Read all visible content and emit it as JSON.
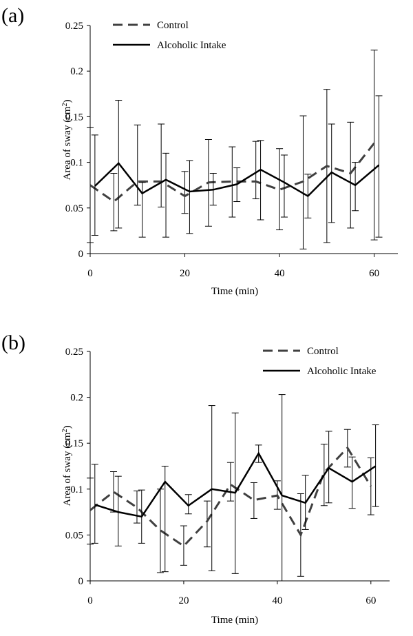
{
  "chart_data": [
    {
      "panel": "(a)",
      "type": "line",
      "xlabel": "Time (min)",
      "ylabel": "Area of sway (cm2)",
      "ylabel_base": "Area of sway (cm",
      "ylabel_sup": "2",
      "ylabel_end": ")",
      "xlim": [
        0,
        65
      ],
      "ylim": [
        0,
        0.25
      ],
      "xticks": [
        0,
        20,
        40,
        60
      ],
      "yticks": [
        0,
        0.05,
        0.1,
        0.15,
        0.2,
        0.25
      ],
      "xtick_labels": [
        "0",
        "20",
        "40",
        "60"
      ],
      "ytick_labels": [
        "0",
        "0.05",
        "0.1",
        "0.15",
        "0.2",
        "0.25"
      ],
      "grid": false,
      "legend_position": "top-left",
      "series": [
        {
          "name": "Control",
          "style": "dashed",
          "color": "#404040",
          "x": [
            0,
            5,
            10,
            15,
            20,
            25,
            30,
            35,
            40,
            45,
            50,
            55,
            60
          ],
          "y": [
            0.075,
            0.057,
            0.079,
            0.079,
            0.063,
            0.078,
            0.079,
            0.079,
            0.07,
            0.079,
            0.096,
            0.088,
            0.121
          ],
          "err_low": [
            0.012,
            0.025,
            0.053,
            0.051,
            0.044,
            0.03,
            0.04,
            0.06,
            0.026,
            0.005,
            0.012,
            0.028,
            0.015
          ],
          "err_high": [
            0.138,
            0.088,
            0.141,
            0.142,
            0.09,
            0.125,
            0.117,
            0.123,
            0.115,
            0.151,
            0.18,
            0.144,
            0.223
          ]
        },
        {
          "name": "Alcoholic Intake",
          "style": "solid",
          "color": "#000000",
          "x": [
            1,
            6,
            11,
            16,
            21,
            26,
            31,
            36,
            41,
            46,
            51,
            56,
            61
          ],
          "y": [
            0.074,
            0.099,
            0.066,
            0.081,
            0.068,
            0.07,
            0.076,
            0.092,
            0.078,
            0.063,
            0.089,
            0.075,
            0.097
          ],
          "err_low": [
            0.02,
            0.028,
            0.018,
            0.018,
            0.022,
            0.053,
            0.057,
            0.037,
            0.04,
            0.039,
            0.034,
            0.047,
            0.018
          ],
          "err_high": [
            0.13,
            0.168,
            0.078,
            0.11,
            0.102,
            0.088,
            0.094,
            0.124,
            0.108,
            0.087,
            0.142,
            0.1,
            0.173
          ]
        }
      ]
    },
    {
      "panel": "(b)",
      "type": "line",
      "xlabel": "Time (min)",
      "ylabel": "Area of sway (cm2)",
      "ylabel_base": "Area of sway (cm",
      "ylabel_sup": "2",
      "ylabel_end": ")",
      "xlim": [
        0,
        64
      ],
      "ylim": [
        0,
        0.25
      ],
      "xticks": [
        0,
        20,
        40,
        60
      ],
      "yticks": [
        0,
        0.05,
        0.1,
        0.15,
        0.2,
        0.25
      ],
      "xtick_labels": [
        "0",
        "20",
        "40",
        "60"
      ],
      "ytick_labels": [
        "0",
        "0.05",
        "0.1",
        "0.15",
        "0.2",
        "0.25"
      ],
      "grid": false,
      "legend_position": "top-right",
      "series": [
        {
          "name": "Control",
          "style": "dashed",
          "color": "#404040",
          "x": [
            0,
            5,
            10,
            15,
            20,
            25,
            30,
            35,
            40,
            45,
            50,
            55,
            60
          ],
          "y": [
            0.077,
            0.097,
            0.08,
            0.055,
            0.038,
            0.065,
            0.105,
            0.088,
            0.093,
            0.05,
            0.118,
            0.145,
            0.103
          ],
          "err_low": [
            0.04,
            0.075,
            0.063,
            0.009,
            0.017,
            0.037,
            0.087,
            0.068,
            0.078,
            0.005,
            0.082,
            0.124,
            0.072
          ],
          "err_high": [
            0.112,
            0.119,
            0.098,
            0.1,
            0.06,
            0.087,
            0.129,
            0.107,
            0.109,
            0.095,
            0.149,
            0.165,
            0.134
          ]
        },
        {
          "name": "Alcoholic Intake",
          "style": "solid",
          "color": "#000000",
          "x": [
            1,
            6,
            11,
            16,
            21,
            26,
            31,
            36,
            41,
            46,
            51,
            56,
            61
          ],
          "y": [
            0.083,
            0.075,
            0.07,
            0.108,
            0.082,
            0.1,
            0.096,
            0.139,
            0.093,
            0.085,
            0.123,
            0.108,
            0.125
          ],
          "err_low": [
            0.041,
            0.038,
            0.041,
            0.01,
            0.073,
            0.011,
            0.008,
            0.129,
            0.0,
            0.056,
            0.085,
            0.079,
            0.081
          ],
          "err_high": [
            0.127,
            0.114,
            0.099,
            0.125,
            0.094,
            0.191,
            0.183,
            0.148,
            0.203,
            0.115,
            0.163,
            0.135,
            0.17
          ]
        }
      ]
    }
  ]
}
